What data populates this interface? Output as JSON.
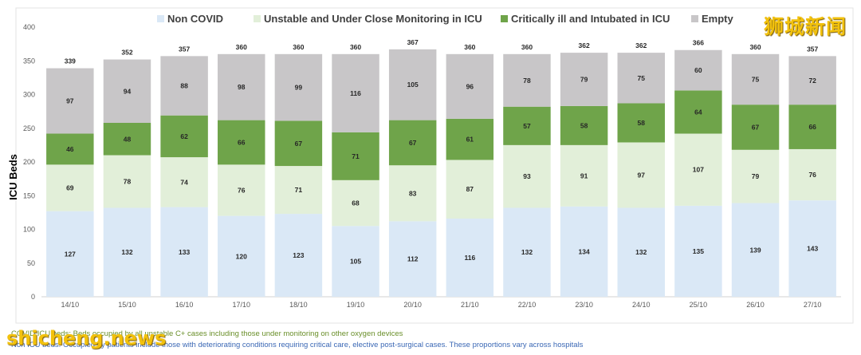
{
  "chart_data": {
    "type": "bar",
    "stacked": true,
    "ylabel": "ICU Beds",
    "xlabel": "",
    "ylim": [
      0,
      400
    ],
    "yticks": [
      0,
      50,
      100,
      150,
      200,
      250,
      300,
      350,
      400
    ],
    "legend_position": "top",
    "categories": [
      "14/10",
      "15/10",
      "16/10",
      "17/10",
      "18/10",
      "19/10",
      "20/10",
      "21/10",
      "22/10",
      "23/10",
      "24/10",
      "25/10",
      "26/10",
      "27/10"
    ],
    "series": [
      {
        "name": "Non COVID",
        "color": "#dae8f6",
        "values": [
          127,
          132,
          133,
          120,
          123,
          105,
          112,
          116,
          132,
          134,
          132,
          135,
          139,
          143
        ]
      },
      {
        "name": "Unstable and Under Close Monitoring in ICU",
        "color": "#e2efd9",
        "values": [
          69,
          78,
          74,
          76,
          71,
          68,
          83,
          87,
          93,
          91,
          97,
          107,
          79,
          76
        ]
      },
      {
        "name": "Critically ill and Intubated in ICU",
        "color": "#6fa44a",
        "values": [
          46,
          48,
          62,
          66,
          67,
          71,
          67,
          61,
          57,
          58,
          58,
          64,
          67,
          66
        ]
      },
      {
        "name": "Empty",
        "color": "#c8c6c8",
        "values": [
          97,
          94,
          88,
          98,
          99,
          116,
          105,
          96,
          78,
          79,
          75,
          60,
          75,
          72
        ]
      }
    ],
    "totals": [
      339,
      352,
      357,
      360,
      360,
      360,
      367,
      360,
      360,
      362,
      362,
      366,
      360,
      357
    ]
  },
  "footnotes": [
    "COVID ICU beds: Beds occupied by all unstable C+ cases including those under monitoring on other oxygen devices",
    "Non ICU beds: Occupied by patients include those with deteriorating conditions requiring critical care, elective post-surgical cases. These proportions vary across hospitals"
  ],
  "watermarks": {
    "cn": "狮城新闻",
    "en": "shicheng.news"
  }
}
